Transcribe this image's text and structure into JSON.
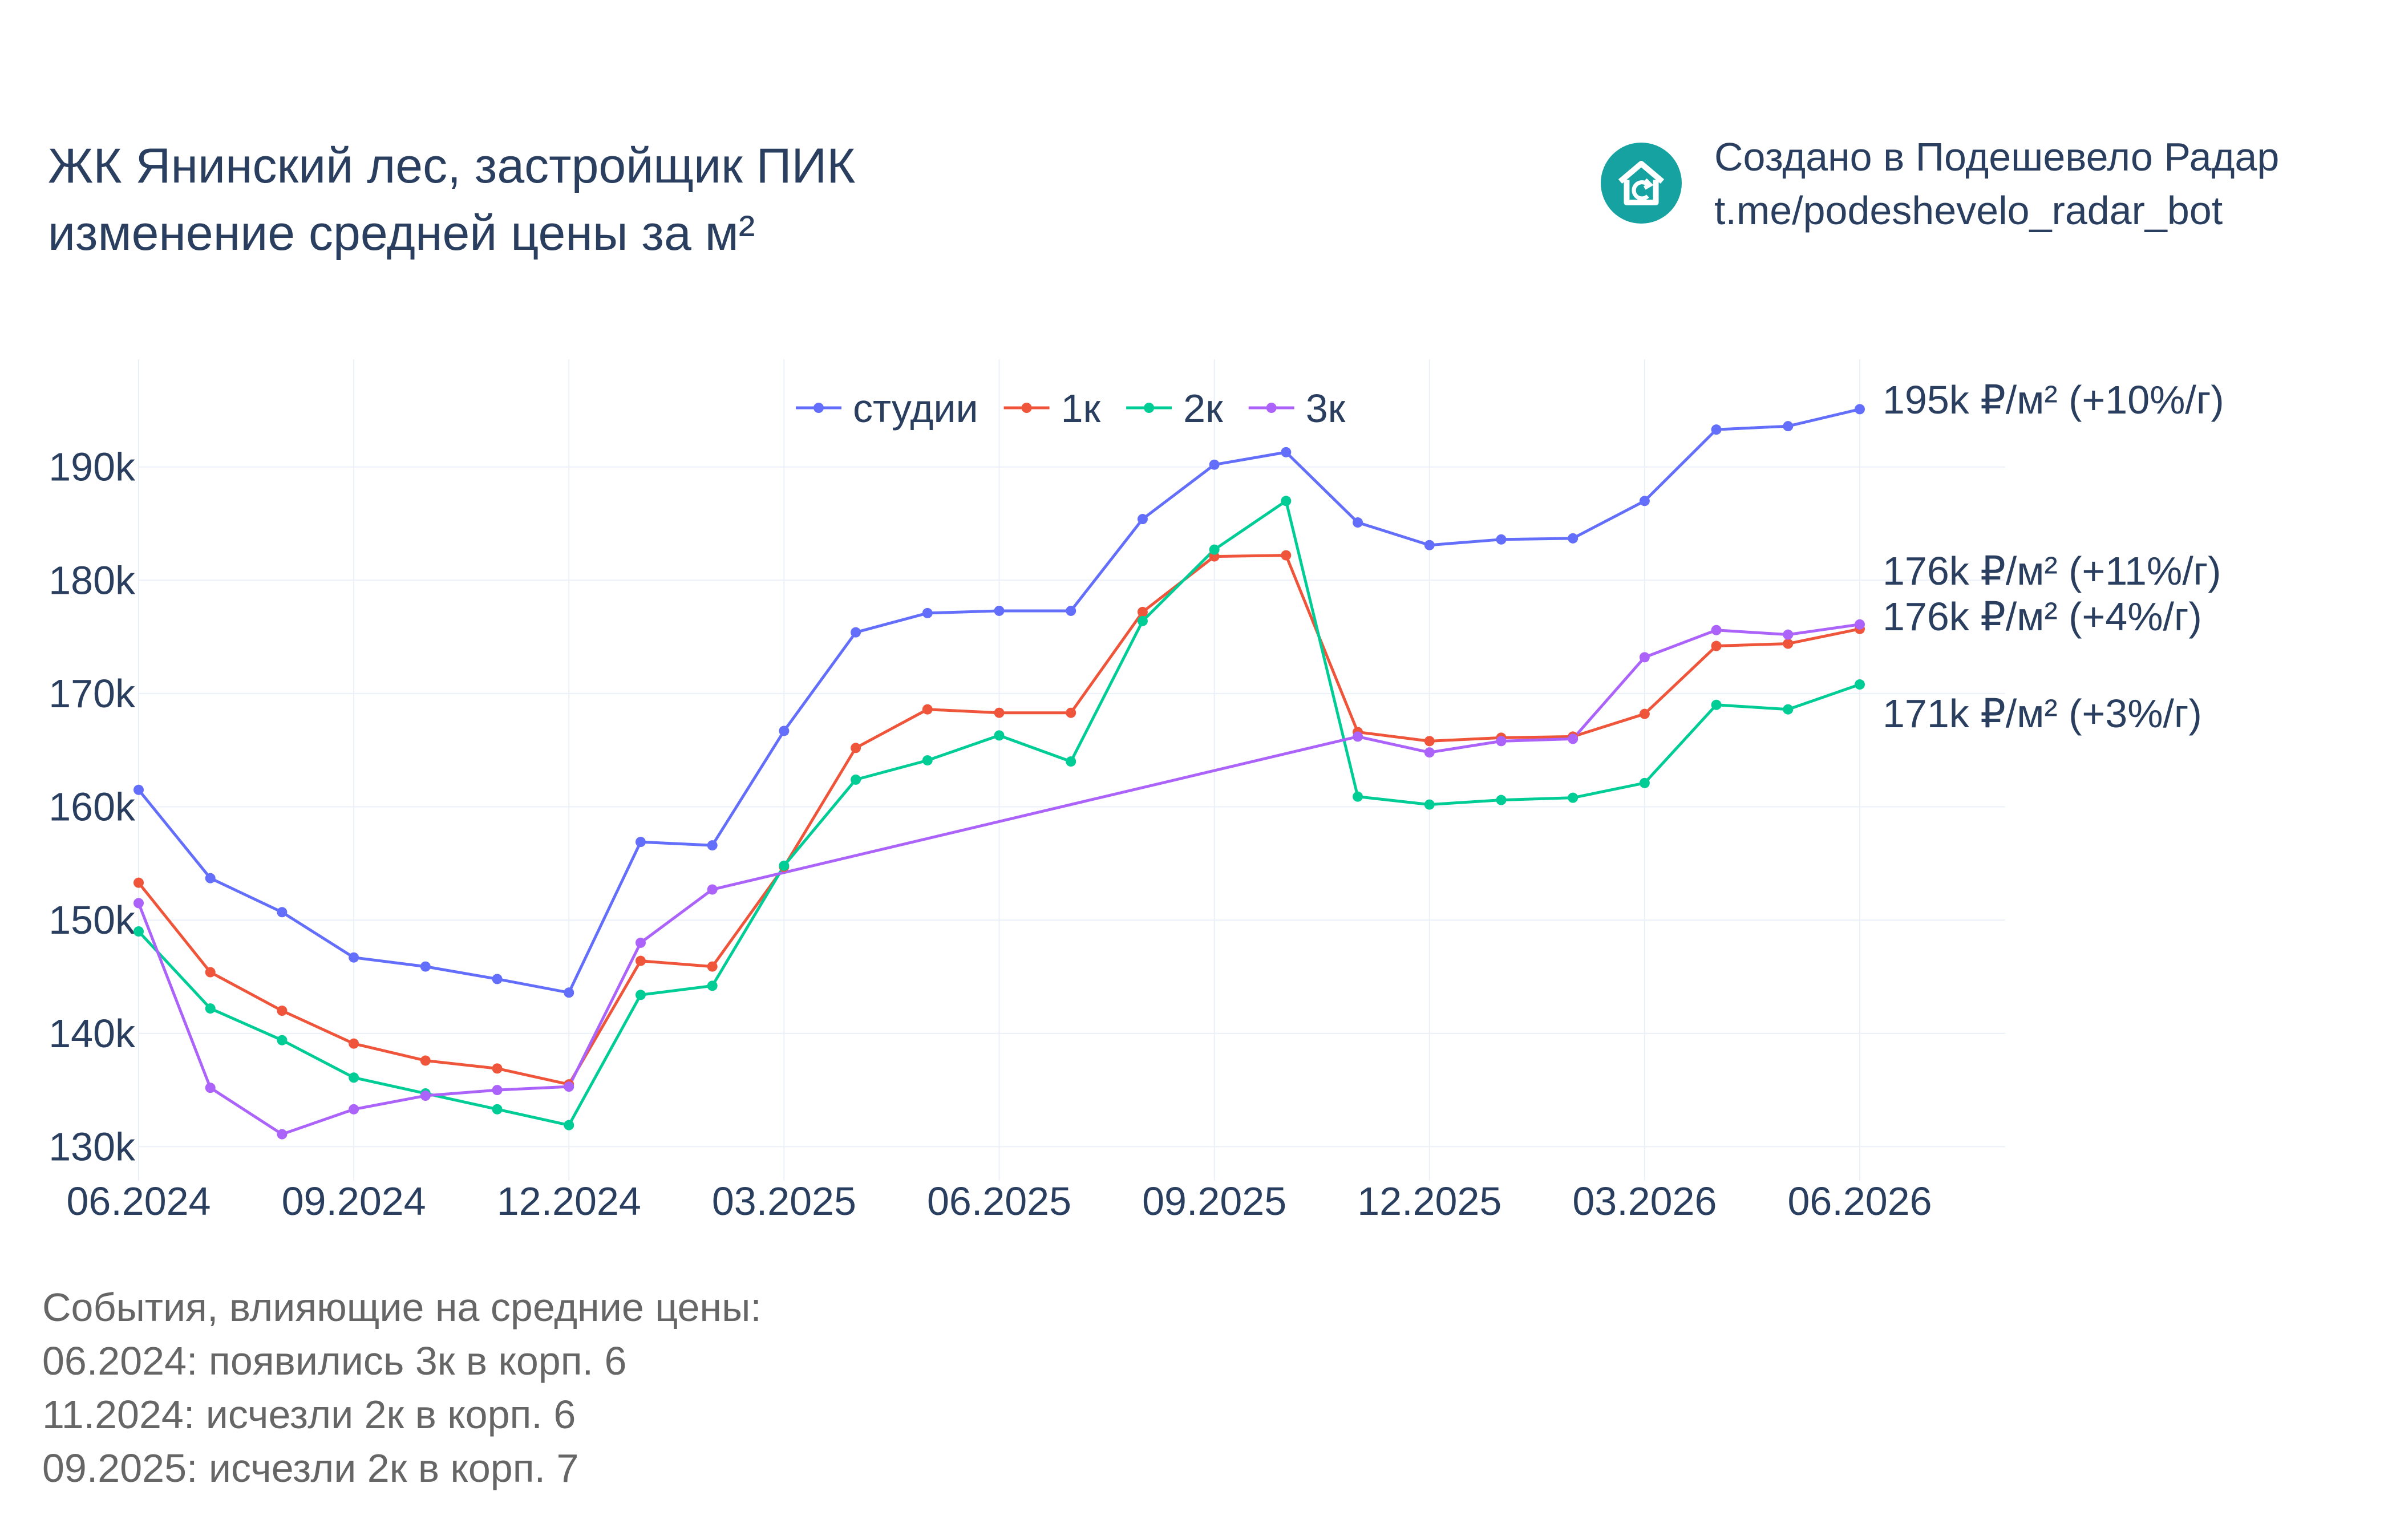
{
  "title": {
    "line1": "ЖК Янинский лес, застройщик ПИК",
    "line2": "изменение средней цены за м²"
  },
  "credit": {
    "line1": "Создано в Подешевело Радар",
    "line2": "t.me/podeshevelo_radar_bot",
    "logo_icon": "house-refresh-icon",
    "logo_color": "#17a2a2"
  },
  "events": {
    "heading": "События, влияющие на средние цены:",
    "items": [
      "06.2024: появились 3к в корп. 6",
      "11.2024: исчезли 2к в корп. 6",
      "09.2025: исчезли 2к в корп. 7"
    ]
  },
  "chart_data": {
    "type": "line",
    "x": [
      "2024-06",
      "2024-07",
      "2024-08",
      "2024-09",
      "2024-10",
      "2024-11",
      "2024-12",
      "2025-01",
      "2025-02",
      "2025-03",
      "2025-04",
      "2025-05",
      "2025-06",
      "2025-07",
      "2025-08",
      "2025-09",
      "2025-10",
      "2025-11",
      "2025-12",
      "2026-01",
      "2026-02",
      "2026-03",
      "2026-04",
      "2026-05",
      "2026-06"
    ],
    "x_tick_labels": [
      "06.2024",
      "09.2024",
      "12.2024",
      "03.2025",
      "06.2025",
      "09.2025",
      "12.2025",
      "03.2026",
      "06.2026"
    ],
    "x_tick_values": [
      "2024-06",
      "2024-09",
      "2024-12",
      "2025-03",
      "2025-06",
      "2025-09",
      "2025-12",
      "2026-03",
      "2026-06"
    ],
    "y_tick_values": [
      130000,
      140000,
      150000,
      160000,
      170000,
      180000,
      190000
    ],
    "y_tick_labels": [
      "130k",
      "140k",
      "150k",
      "160k",
      "170k",
      "180k",
      "190k"
    ],
    "ylim": [
      127000,
      199500
    ],
    "grid": true,
    "legend_position": "top-center",
    "series": [
      {
        "name": "студии",
        "color": "#636efa",
        "values": [
          161500,
          153700,
          150700,
          146700,
          145900,
          144800,
          143600,
          156900,
          156600,
          166700,
          175400,
          177100,
          177300,
          177300,
          185400,
          190200,
          191300,
          185100,
          183100,
          183600,
          183700,
          187000,
          193300,
          193600,
          195100
        ],
        "end_label": "195k ₽/м² (+10%/г)"
      },
      {
        "name": "1к",
        "color": "#ef553b",
        "values": [
          153300,
          145400,
          142000,
          139100,
          137600,
          136900,
          135500,
          146400,
          145900,
          154700,
          165200,
          168600,
          168300,
          168300,
          177200,
          182100,
          182200,
          166600,
          165800,
          166100,
          166200,
          168200,
          174200,
          174400,
          175700
        ],
        "end_label": "176k ₽/м² (+4%/г)"
      },
      {
        "name": "2к",
        "color": "#00cc96",
        "values": [
          149000,
          142200,
          139400,
          136100,
          134700,
          133300,
          131900,
          143400,
          144200,
          154800,
          162400,
          164100,
          166300,
          164000,
          176400,
          182700,
          187000,
          160900,
          160200,
          160600,
          160800,
          162100,
          169000,
          168600,
          170800
        ],
        "end_label": "171k ₽/м² (+3%/г)"
      },
      {
        "name": "3к",
        "color": "#ab63fa",
        "values": [
          151500,
          135200,
          131100,
          133300,
          134500,
          135000,
          135300,
          148000,
          152700,
          null,
          null,
          null,
          null,
          null,
          null,
          null,
          null,
          166200,
          164800,
          165800,
          166000,
          173200,
          175600,
          175200,
          176100
        ],
        "end_label": "176k ₽/м² (+11%/г)"
      }
    ]
  }
}
